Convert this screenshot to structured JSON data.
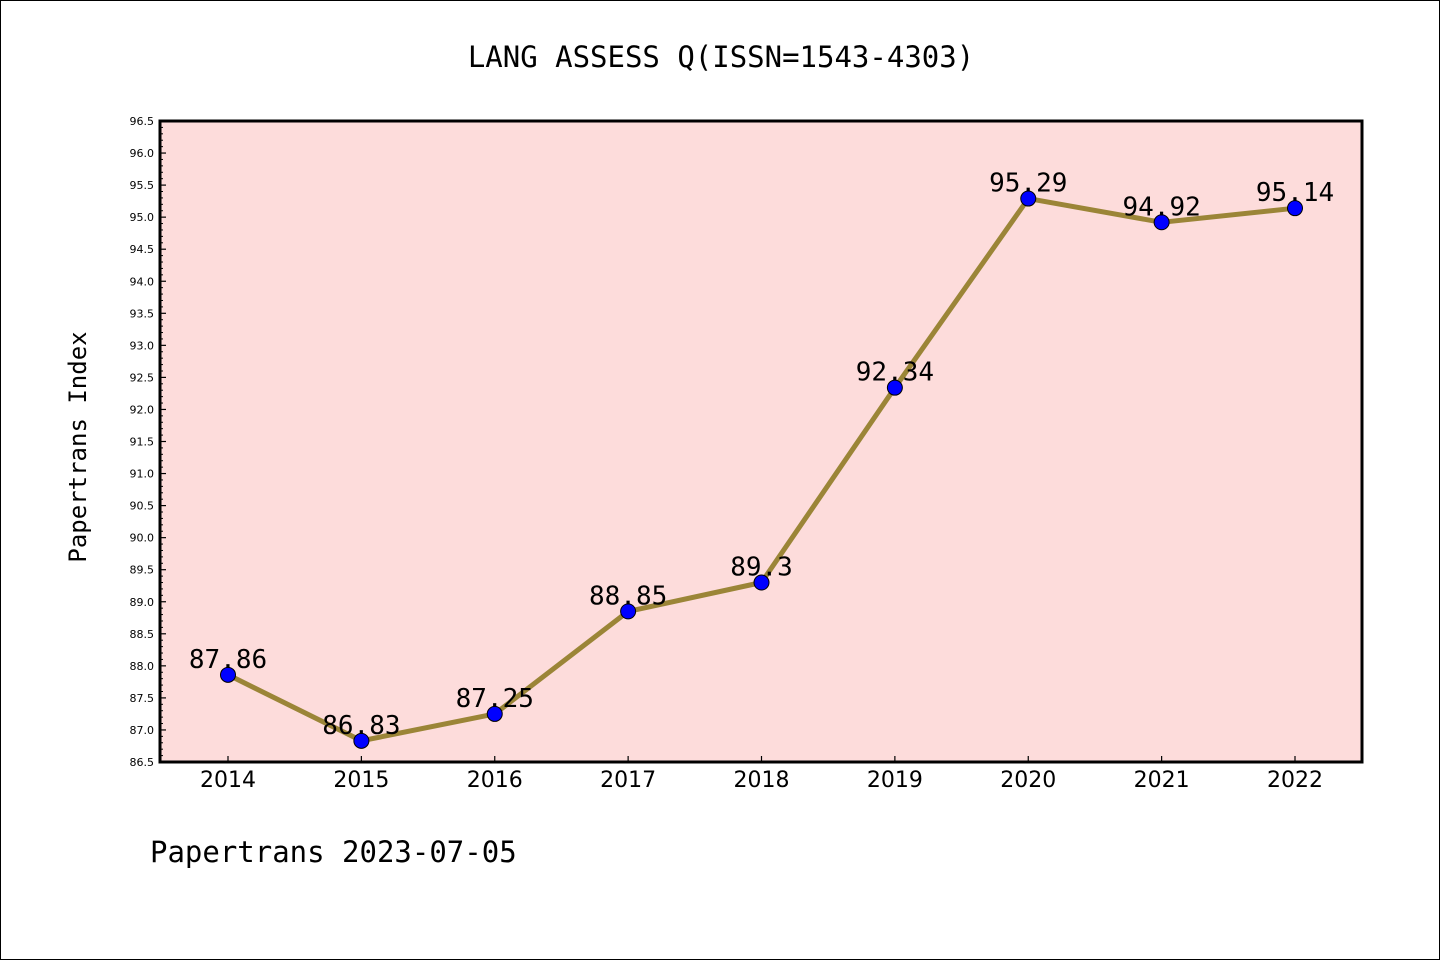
{
  "chart_data": {
    "type": "line",
    "title": "LANG ASSESS Q(ISSN=1543-4303)",
    "xlabel": "",
    "ylabel": "Papertrans Index",
    "categories": [
      "2014",
      "2015",
      "2016",
      "2017",
      "2018",
      "2019",
      "2020",
      "2021",
      "2022"
    ],
    "series": [
      {
        "values": [
          87.86,
          86.83,
          87.25,
          88.85,
          89.3,
          92.34,
          95.29,
          94.92,
          95.14
        ],
        "labels": [
          "87.86",
          "86.83",
          "87.25",
          "88.85",
          "89.3",
          "92.34",
          "95.29",
          "94.92",
          "95.14"
        ]
      }
    ],
    "ylim": [
      86.5,
      96.5
    ],
    "yticks": [
      "86.5",
      "87.0",
      "87.5",
      "88.0",
      "88.5",
      "89.0",
      "89.5",
      "90.0",
      "90.5",
      "91.0",
      "91.5",
      "92.0",
      "92.5",
      "93.0",
      "93.5",
      "94.0",
      "94.5",
      "95.0",
      "95.5",
      "96.0",
      "96.5"
    ],
    "grid": false,
    "legend": "none",
    "colors": {
      "plot_background": "#fddcdb",
      "line": "#9b8537",
      "marker": "#0000ff",
      "axes": "#000000"
    }
  },
  "footer": {
    "text": "Papertrans 2023-07-05"
  }
}
